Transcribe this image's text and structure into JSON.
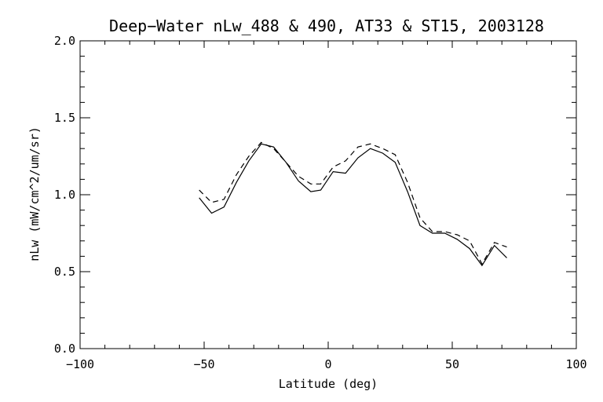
{
  "chart_data": {
    "type": "line",
    "title": "Deep−Water nLw_488 & 490, AT33 & ST15, 2003128",
    "xlabel": "Latitude (deg)",
    "ylabel": "nLw (mW/cm^2/um/sr)",
    "xlim": [
      -100,
      100
    ],
    "ylim": [
      0.0,
      2.0
    ],
    "x_ticks": [
      -100,
      -50,
      0,
      50,
      100
    ],
    "x_tick_labels": [
      "−100",
      "−50",
      "0",
      "50",
      "100"
    ],
    "y_ticks": [
      0.0,
      0.5,
      1.0,
      1.5,
      2.0
    ],
    "y_tick_labels": [
      "0.0",
      "0.5",
      "1.0",
      "1.5",
      "2.0"
    ],
    "grid": false,
    "legend": "none",
    "series": [
      {
        "style": "solid",
        "color": "#000000",
        "x": [
          -52,
          -47,
          -42,
          -37,
          -32,
          -27,
          -22,
          -17,
          -12,
          -7,
          -3,
          2,
          7,
          12,
          17,
          22,
          27,
          32,
          37,
          42,
          47,
          52,
          57,
          62,
          67,
          72
        ],
        "y": [
          0.98,
          0.88,
          0.92,
          1.08,
          1.22,
          1.33,
          1.31,
          1.21,
          1.09,
          1.02,
          1.03,
          1.15,
          1.14,
          1.24,
          1.3,
          1.27,
          1.21,
          1.02,
          0.8,
          0.75,
          0.75,
          0.71,
          0.65,
          0.54,
          0.67,
          0.59
        ]
      },
      {
        "style": "dashed",
        "color": "#000000",
        "x": [
          -52,
          -47,
          -42,
          -37,
          -32,
          -27,
          -22,
          -17,
          -12,
          -7,
          -3,
          2,
          7,
          12,
          17,
          22,
          27,
          32,
          37,
          42,
          47,
          52,
          57,
          62,
          67,
          72
        ],
        "y": [
          1.03,
          0.95,
          0.97,
          1.13,
          1.25,
          1.34,
          1.3,
          1.21,
          1.12,
          1.07,
          1.07,
          1.18,
          1.22,
          1.31,
          1.33,
          1.3,
          1.26,
          1.08,
          0.85,
          0.76,
          0.76,
          0.74,
          0.7,
          0.55,
          0.69,
          0.66
        ]
      }
    ]
  }
}
